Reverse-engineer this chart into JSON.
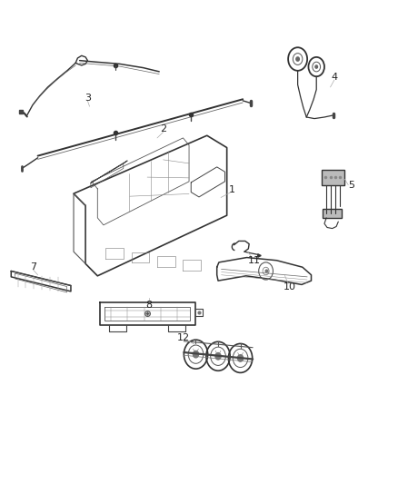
{
  "title": "",
  "background_color": "#ffffff",
  "fig_width": 4.38,
  "fig_height": 5.33,
  "dpi": 100,
  "line_color": "#555555",
  "label_fontsize": 8,
  "label_color": "#222222"
}
